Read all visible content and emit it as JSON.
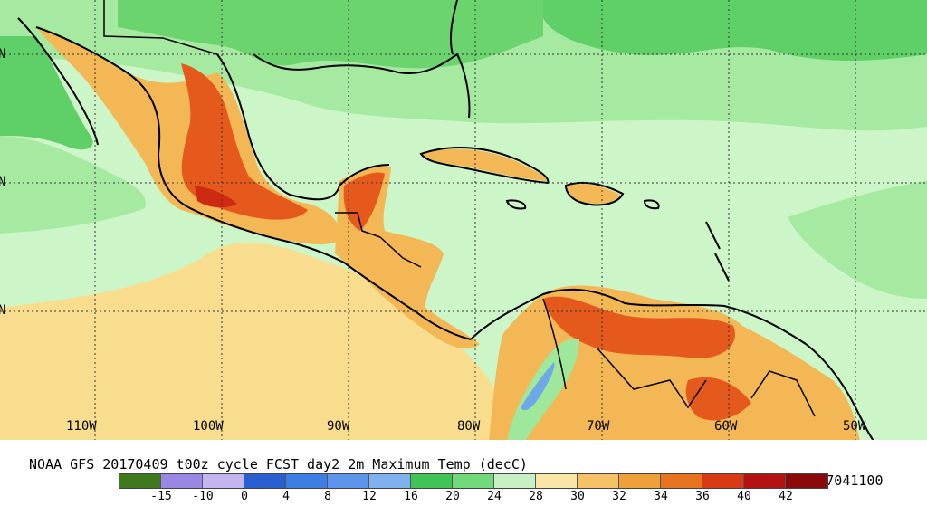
{
  "caption": {
    "title": "NOAA GFS 20170409 t00z cycle FCST day2 2m Maximum Temp (decC)",
    "valid": "VALID 2017041100"
  },
  "map": {
    "longitude_labels": [
      "110W",
      "100W",
      "90W",
      "80W",
      "70W",
      "60W",
      "50W"
    ],
    "latitude_labels": [
      "N",
      "N",
      "N",
      "N"
    ],
    "colors": {
      "land_temp_28": "#ccf5c8",
      "ocean_temp_24_26": "#9fe79a",
      "temp_20": "#5fcf68",
      "temp_30": "#f9dd8e",
      "temp_32": "#f4b755",
      "temp_34": "#ee8b32",
      "temp_36": "#e55a1c",
      "temp_40": "#cc2b12",
      "temp_42": "#a01010"
    }
  },
  "legend": {
    "ticks": [
      "-15",
      "-10",
      "0",
      "4",
      "8",
      "12",
      "16",
      "20",
      "24",
      "28",
      "30",
      "32",
      "34",
      "36",
      "40",
      "42"
    ],
    "colors": [
      "#3e7a1d",
      "#9a86e3",
      "#c4b4f0",
      "#2a5fd1",
      "#3c7ee3",
      "#5c95eb",
      "#7fb1ee",
      "#3fc556",
      "#72d97a",
      "#c8f0c4",
      "#f8e6a6",
      "#f5c268",
      "#f0a03a",
      "#e8731f",
      "#d83a16",
      "#b41212",
      "#8a0a0a"
    ]
  }
}
